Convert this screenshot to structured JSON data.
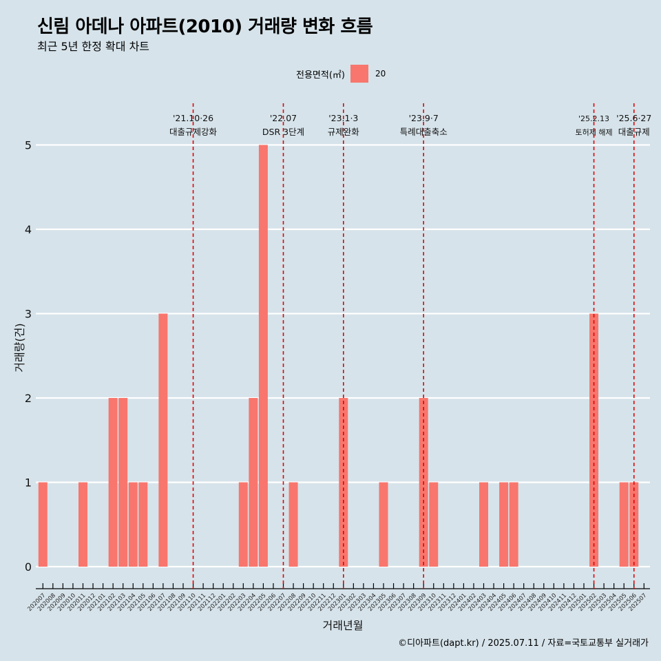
{
  "title": "신림 아데나 아파트(2010) 거래량 변화 흐름",
  "subtitle": "최근 5년 한정 확대 차트",
  "caption": "©디아파트(dapt.kr) / 2025.07.11 / 자료=국토교통부 실거래가",
  "legend": {
    "title": "전용면적(㎡)",
    "items": [
      {
        "label": "20",
        "color": "#F8766D"
      }
    ]
  },
  "colors": {
    "background": "#d6e3ea",
    "bar": "#F8766D",
    "event_line": "#e00000",
    "grid": "#ffffff"
  },
  "chart_data": {
    "type": "bar",
    "xlabel": "거래년월",
    "ylabel": "거래량(건)",
    "ylim": [
      0,
      5
    ],
    "yticks": [
      0,
      1,
      2,
      3,
      4,
      5
    ],
    "categories": [
      "202007",
      "202008",
      "202009",
      "202010",
      "202011",
      "202012",
      "202101",
      "202102",
      "202103",
      "202104",
      "202105",
      "202106",
      "202107",
      "202108",
      "202109",
      "202110",
      "202111",
      "202112",
      "202201",
      "202202",
      "202203",
      "202204",
      "202205",
      "202206",
      "202207",
      "202208",
      "202209",
      "202210",
      "202211",
      "202212",
      "202301",
      "202302",
      "202303",
      "202304",
      "202305",
      "202306",
      "202307",
      "202308",
      "202309",
      "202310",
      "202311",
      "202312",
      "202401",
      "202402",
      "202403",
      "202404",
      "202405",
      "202406",
      "202407",
      "202408",
      "202409",
      "202410",
      "202411",
      "202412",
      "202501",
      "202502",
      "202503",
      "202504",
      "202505",
      "202506",
      "202507"
    ],
    "series": [
      {
        "name": "20",
        "values": [
          1,
          0,
          0,
          0,
          1,
          0,
          0,
          2,
          2,
          1,
          1,
          0,
          3,
          0,
          0,
          0,
          0,
          0,
          0,
          0,
          1,
          2,
          5,
          0,
          0,
          1,
          0,
          0,
          0,
          0,
          2,
          0,
          0,
          0,
          1,
          0,
          0,
          0,
          2,
          1,
          0,
          0,
          0,
          0,
          1,
          0,
          1,
          1,
          0,
          0,
          0,
          0,
          0,
          0,
          0,
          3,
          0,
          0,
          1,
          1,
          0
        ]
      }
    ],
    "events": [
      {
        "date_line1": "'21.10·26",
        "date_line2": "대출규제강화",
        "at": "202110"
      },
      {
        "date_line1": "'22.07",
        "date_line2": "DSR 3단계",
        "at": "202207"
      },
      {
        "date_line1": "'23.1·3",
        "date_line2": "규제완화",
        "at": "202301"
      },
      {
        "date_line1": "'23.9·7",
        "date_line2": "특례대출축소",
        "at": "202309"
      },
      {
        "date_line1": "'25.2.13",
        "date_line2": "토허제 해제",
        "at": "202502"
      },
      {
        "date_line1": "'25.6·27",
        "date_line2": "대출규제",
        "at": "202506"
      }
    ],
    "grid": true,
    "legend_position": "top"
  }
}
